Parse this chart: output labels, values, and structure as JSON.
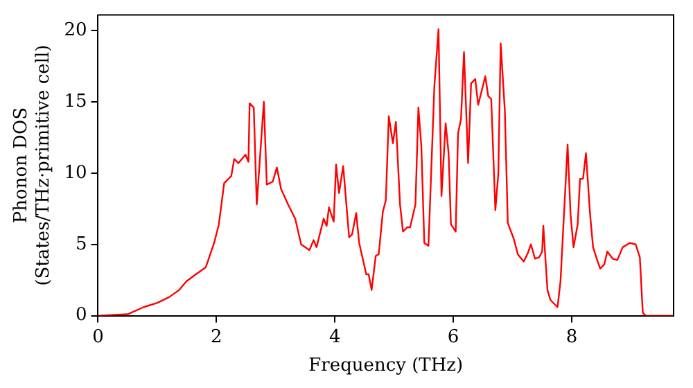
{
  "chart_data": {
    "type": "line",
    "xlabel": "Frequency (THz)",
    "ylabel": "Phonon DOS\n(States/THz·primitive cell)",
    "xlim": [
      0,
      9.72
    ],
    "ylim": [
      0,
      21.1
    ],
    "xticks": [
      0,
      2,
      4,
      6,
      8
    ],
    "yticks": [
      0,
      5,
      10,
      15,
      20
    ],
    "grid": false,
    "legend": false,
    "marker": "none",
    "line_style": "solid",
    "series": [
      {
        "color": "#ff0000",
        "x": [
          0,
          0.5,
          0.77,
          1.0,
          1.2,
          1.37,
          1.49,
          1.65,
          1.82,
          1.96,
          2.04,
          2.13,
          2.25,
          2.3,
          2.37,
          2.49,
          2.54,
          2.56,
          2.63,
          2.68,
          2.8,
          2.85,
          2.95,
          3.02,
          3.09,
          3.21,
          3.33,
          3.43,
          3.57,
          3.64,
          3.69,
          3.81,
          3.86,
          3.9,
          3.98,
          4.02,
          4.07,
          4.14,
          4.24,
          4.29,
          4.36,
          4.41,
          4.53,
          4.57,
          4.62,
          4.69,
          4.74,
          4.81,
          4.86,
          4.91,
          4.98,
          5.03,
          5.1,
          5.15,
          5.22,
          5.27,
          5.36,
          5.41,
          5.46,
          5.51,
          5.58,
          5.68,
          5.75,
          5.8,
          5.87,
          5.92,
          5.96,
          6.04,
          6.08,
          6.13,
          6.18,
          6.25,
          6.3,
          6.37,
          6.42,
          6.54,
          6.59,
          6.64,
          6.71,
          6.76,
          6.8,
          6.87,
          6.92,
          7.02,
          7.09,
          7.19,
          7.26,
          7.31,
          7.38,
          7.45,
          7.5,
          7.52,
          7.59,
          7.64,
          7.76,
          7.81,
          7.93,
          7.98,
          8.03,
          8.1,
          8.14,
          8.19,
          8.24,
          8.31,
          8.36,
          8.43,
          8.48,
          8.55,
          8.6,
          8.69,
          8.77,
          8.86,
          8.98,
          9.08,
          9.15,
          9.2,
          9.25,
          9.72
        ],
        "values": [
          0,
          0.1,
          0.6,
          0.9,
          1.3,
          1.8,
          2.4,
          2.9,
          3.4,
          5.1,
          6.4,
          9.3,
          9.8,
          11.0,
          10.7,
          11.3,
          10.8,
          14.9,
          14.6,
          7.8,
          15.0,
          9.2,
          9.4,
          10.4,
          8.9,
          7.8,
          6.8,
          5.0,
          4.6,
          5.3,
          4.8,
          6.8,
          6.3,
          7.6,
          6.6,
          10.6,
          8.6,
          10.5,
          5.5,
          5.7,
          7.2,
          5.1,
          2.9,
          2.9,
          1.8,
          4.2,
          4.3,
          7.3,
          8.1,
          14.0,
          12.1,
          13.6,
          7.8,
          5.9,
          6.2,
          6.2,
          7.8,
          14.6,
          11.9,
          5.1,
          4.9,
          16.1,
          20.1,
          8.4,
          13.5,
          11.4,
          6.4,
          5.9,
          12.8,
          13.8,
          18.5,
          10.7,
          16.3,
          16.6,
          14.8,
          16.8,
          15.4,
          15.2,
          7.4,
          10.0,
          19.1,
          14.4,
          6.5,
          5.4,
          4.3,
          3.8,
          4.4,
          5.0,
          4.0,
          4.1,
          4.5,
          6.3,
          1.8,
          1.1,
          0.6,
          2.4,
          12.0,
          7.1,
          4.8,
          6.4,
          9.6,
          9.6,
          11.4,
          7.1,
          4.8,
          3.9,
          3.3,
          3.6,
          4.5,
          4.0,
          3.9,
          4.8,
          5.1,
          5.0,
          4.1,
          0.2,
          0,
          0
        ]
      }
    ]
  }
}
